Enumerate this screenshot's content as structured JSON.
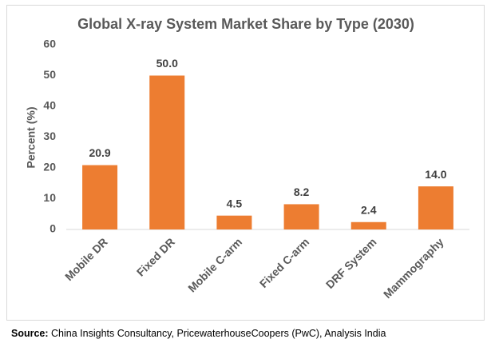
{
  "chart_data": {
    "type": "bar",
    "title": "Global X-ray System Market Share by Type (2030)",
    "y_label": "Percent (%)",
    "categories": [
      "Mobile DR",
      "Fixed DR",
      "Mobile C-arm",
      "Fixed C-arm",
      "DRF System",
      "Mammography"
    ],
    "values": [
      20.9,
      50,
      4.5,
      8.2,
      2.4,
      14
    ],
    "value_labels": [
      "20.9",
      "50.0",
      "4.5",
      "8.2",
      "2.4",
      "14.0"
    ],
    "color": "#ed7d31",
    "ylim": [
      0,
      60
    ],
    "yticks": [
      0,
      10,
      20,
      30,
      40,
      50,
      60
    ],
    "grid": false
  },
  "source_label": "Source:",
  "source": "China Insights Consultancy, PricewaterhouseCoopers (PwC), Analysis India"
}
